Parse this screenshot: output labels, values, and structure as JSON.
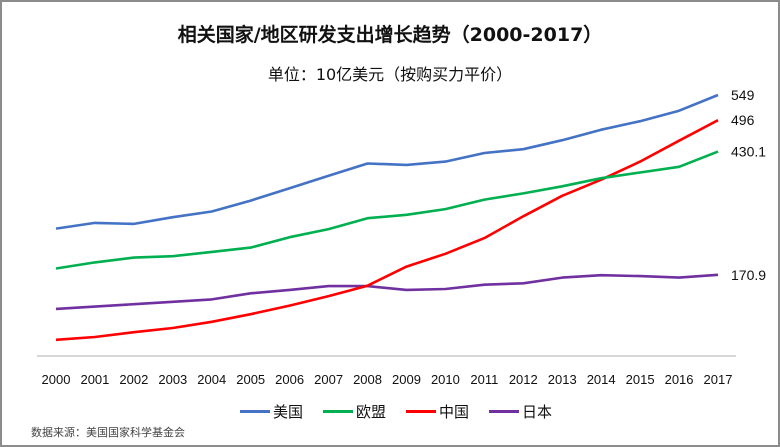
{
  "title": "相关国家/地区研发支出增长趋势（2000-2017）",
  "subtitle": "单位：10亿美元（按购买力平价）",
  "source": "数据来源：美国国家科学基金会",
  "chart_data": {
    "type": "line",
    "title": "相关国家/地区研发支出增长趋势（2000-2017）",
    "subtitle": "单位：10亿美元（按购买力平价）",
    "xlabel": "",
    "ylabel": "",
    "ylim": [
      0,
      600
    ],
    "grid": false,
    "y_axis_labels_shown": false,
    "legend": "bottom",
    "categories": [
      "2000",
      "2001",
      "2002",
      "2003",
      "2004",
      "2005",
      "2006",
      "2007",
      "2008",
      "2009",
      "2010",
      "2011",
      "2012",
      "2013",
      "2014",
      "2015",
      "2016",
      "2017"
    ],
    "series": [
      {
        "name": "美国",
        "color": "#4472c4",
        "end_label": "549",
        "values": [
          268,
          280,
          278,
          292,
          304,
          327,
          353,
          379,
          405,
          402,
          409,
          427,
          435,
          454,
          476,
          494,
          516,
          549
        ]
      },
      {
        "name": "欧盟",
        "color": "#00b050",
        "end_label": "430.1",
        "values": [
          184,
          197,
          207,
          210,
          219,
          228,
          250,
          267,
          290,
          297,
          309,
          329,
          342,
          357,
          374,
          386,
          398,
          430.1
        ]
      },
      {
        "name": "中国",
        "color": "#ff0000",
        "end_label": "496",
        "values": [
          34,
          40,
          50,
          59,
          72,
          88,
          106,
          126,
          148,
          188,
          215,
          248,
          294,
          337,
          371,
          409,
          453,
          496
        ]
      },
      {
        "name": "日本",
        "color": "#7030a0",
        "end_label": "170.9",
        "values": [
          99,
          104,
          109,
          114,
          119,
          132,
          139,
          147,
          147,
          139,
          141,
          150,
          153,
          165,
          170,
          168,
          165,
          170.9
        ]
      }
    ]
  }
}
